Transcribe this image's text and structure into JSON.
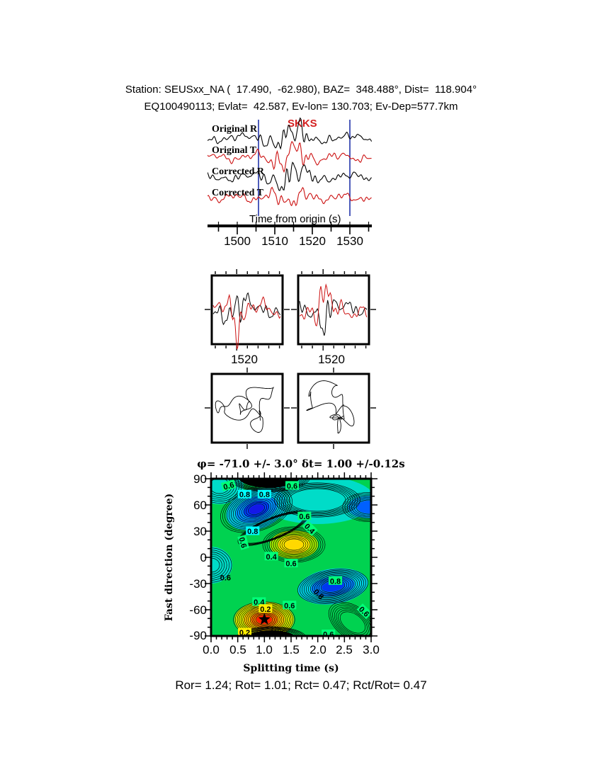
{
  "header": {
    "line1": "Station: SEUSxx_NA (  17.490,  -62.980), BAZ=  348.488°, Dist=  118.904°",
    "line2": "EQ100490113; Evlat=  42.587, Ev-lon= 130.703; Ev-Dep=577.7km"
  },
  "seismogram": {
    "phase": "SKKS",
    "phase_color": "#d42020",
    "trace_labels": [
      "Original R",
      "Original T",
      "Corrected R",
      "Corrected T"
    ],
    "axis_title": "Time from origin (s)",
    "tick_labels": [
      "1500",
      "1510",
      "1520",
      "1530"
    ]
  },
  "zoom_panels": {
    "left_label": "1520",
    "right_label": "1520"
  },
  "splitting_map": {
    "title": "φ= -71.0 +/- 3.0°  δt= 1.00 +/-0.12s",
    "xlabel": "Splitting time (s)",
    "ylabel": "Fast direction (degree)",
    "x_tick_labels": [
      "0.0",
      "0.5",
      "1.0",
      "1.5",
      "2.0",
      "2.5",
      "3.0"
    ],
    "y_tick_labels": [
      "90",
      "60",
      "30",
      "0",
      "-30",
      "-60",
      "-90"
    ]
  },
  "footer": {
    "stats": "Ror= 1.24; Rot= 1.01; Rct= 0.47; Rct/Rot= 0.47"
  },
  "colors": {
    "trace_black": "#000000",
    "trace_red": "#cc1111",
    "window_marker": "#2233aa",
    "map_green": "#00d250",
    "map_cyan": "#00dcc8",
    "map_blue": "#0028f0",
    "map_yellow": "#ffd800",
    "map_red": "#ff1e00",
    "label_green": "#00ff78",
    "label_cyan": "#00ffff",
    "label_yellow": "#ffee00"
  },
  "chart_data": [
    {
      "type": "line",
      "id": "seismograms",
      "phase": "SKKS",
      "series": [
        {
          "name": "Original R",
          "color": "#000000"
        },
        {
          "name": "Original T",
          "color": "#cc1111"
        },
        {
          "name": "Corrected R",
          "color": "#000000"
        },
        {
          "name": "Corrected T",
          "color": "#cc1111"
        }
      ],
      "xlabel": "Time from origin (s)",
      "xlim": [
        1492,
        1536
      ],
      "x_ticks": [
        1500,
        1510,
        1520,
        1530
      ],
      "window_markers": [
        1505.7,
        1530
      ],
      "marker_color": "#2233aa"
    },
    {
      "type": "line",
      "id": "window-waveforms",
      "panels": [
        {
          "x_tick": 1520
        },
        {
          "x_tick": 1520
        }
      ],
      "series_colors": [
        "#000000",
        "#cc1111"
      ]
    },
    {
      "type": "scatter",
      "id": "particle-motion",
      "panels": [
        "original",
        "corrected"
      ]
    },
    {
      "type": "heatmap",
      "id": "splitting-error-surface",
      "title": "φ= -71.0 +/- 3.0°  δt= 1.00 +/-0.12s",
      "xlabel": "Splitting time (s)",
      "ylabel": "Fast direction (degree)",
      "xlim": [
        0,
        3
      ],
      "ylim": [
        -90,
        90
      ],
      "x_ticks": [
        0.0,
        0.5,
        1.0,
        1.5,
        2.0,
        2.5,
        3.0
      ],
      "y_ticks": [
        90,
        60,
        30,
        0,
        -30,
        -60,
        -90
      ],
      "best_fit": {
        "phi_deg": -71.0,
        "phi_err_deg": 3.0,
        "dt_s": 1.0,
        "dt_err_s": 0.12
      },
      "minimum_marker": {
        "dt": 1.0,
        "phi": -71,
        "symbol": "star"
      },
      "contour_labels": [
        {
          "t": "0.6",
          "dt": 0.33,
          "phi": 82,
          "bg": "green",
          "rot": -15
        },
        {
          "t": "0.8",
          "dt": 0.63,
          "phi": 72,
          "bg": "cyan",
          "rot": 0
        },
        {
          "t": "0.8",
          "dt": 1.0,
          "phi": 72,
          "bg": "cyan",
          "rot": 0
        },
        {
          "t": "0.6",
          "dt": 1.52,
          "phi": 82,
          "bg": "green",
          "rot": 0
        },
        {
          "t": "0.6",
          "dt": 1.75,
          "phi": 47,
          "bg": "green",
          "rot": 0
        },
        {
          "t": "0.8",
          "dt": 0.78,
          "phi": 30,
          "bg": "cyan",
          "rot": 0
        },
        {
          "t": "0.6",
          "dt": 0.6,
          "phi": 17,
          "bg": "green",
          "rot": 75
        },
        {
          "t": "0.4",
          "dt": 1.85,
          "phi": 33,
          "bg": "green",
          "rot": 45
        },
        {
          "t": "0.4",
          "dt": 1.13,
          "phi": 1,
          "bg": "green",
          "rot": 0
        },
        {
          "t": "0.6",
          "dt": 1.5,
          "phi": -7,
          "bg": "green",
          "rot": 0
        },
        {
          "t": "0.6",
          "dt": 0.27,
          "phi": -23,
          "bg": "none",
          "rot": 0
        },
        {
          "t": "0.8",
          "dt": 2.33,
          "phi": -27,
          "bg": "green",
          "rot": 0
        },
        {
          "t": "0.8",
          "dt": 2.02,
          "phi": -42,
          "bg": "none",
          "rot": 45
        },
        {
          "t": "0.4",
          "dt": 0.9,
          "phi": -51,
          "bg": "green",
          "rot": 0
        },
        {
          "t": "0.6",
          "dt": 1.47,
          "phi": -55,
          "bg": "green",
          "rot": 0
        },
        {
          "t": "0.2",
          "dt": 1.02,
          "phi": -59,
          "bg": "yellow",
          "rot": 0
        },
        {
          "t": "0.6",
          "dt": 2.87,
          "phi": -62,
          "bg": "green",
          "rot": 45
        },
        {
          "t": "0.2",
          "dt": 0.63,
          "phi": -86,
          "bg": "yellow",
          "rot": 0
        },
        {
          "t": "0.6",
          "dt": 2.2,
          "phi": -88,
          "bg": "green",
          "rot": 0
        }
      ],
      "stats": {
        "Ror": 1.24,
        "Rot": 1.01,
        "Rct": 0.47,
        "Rct_over_Rot": 0.47
      }
    }
  ]
}
